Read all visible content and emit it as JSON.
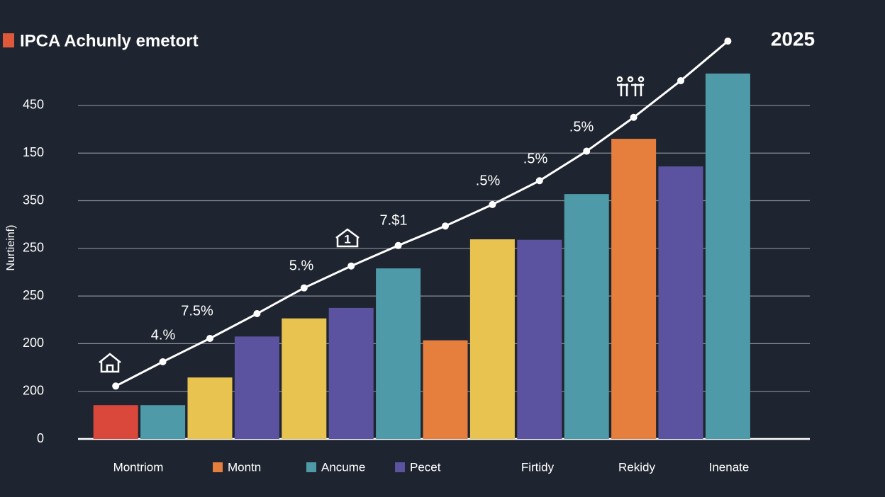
{
  "chart_data": {
    "type": "bar",
    "title": "IPCA Achunly emetort",
    "title_color": "#e0583a",
    "year_label": "2025",
    "ylabel": "Nurtieinf)",
    "categories": [
      null,
      null,
      null,
      null,
      null,
      null,
      null,
      null,
      null,
      null,
      null,
      null,
      null,
      null
    ],
    "values": [
      0.71,
      0.71,
      1.29,
      2.15,
      2.53,
      2.75,
      3.58,
      2.07,
      4.19,
      4.18,
      5.14,
      6.3,
      5.72,
      7.67
    ],
    "colors": [
      "#d9483b",
      "#4e9aa8",
      "#e8c350",
      "#5c53a0",
      "#e8c350",
      "#5c53a0",
      "#4e9aa8",
      "#e67e3e",
      "#e8c350",
      "#5c53a0",
      "#4e9aa8",
      "#e67e3e",
      "#5c53a0",
      "#4e9aa8"
    ],
    "line": {
      "color": "#ffffff",
      "values": [
        1.11,
        1.62,
        2.11,
        2.63,
        3.17,
        3.63,
        4.06,
        4.47,
        4.92,
        5.42,
        6.04,
        6.75,
        7.52,
        8.35
      ]
    },
    "ylim": [
      0,
      8.5
    ],
    "yticks": [
      {
        "value": 0,
        "label": "0"
      },
      {
        "value": 1,
        "label": "200"
      },
      {
        "value": 2,
        "label": "200"
      },
      {
        "value": 3,
        "label": "250"
      },
      {
        "value": 4,
        "label": "250"
      },
      {
        "value": 5,
        "label": "350"
      },
      {
        "value": 6,
        "label": "150"
      },
      {
        "value": 7,
        "label": "450"
      }
    ],
    "grid": true,
    "annotations": [
      "4.%",
      "7.5%",
      "5.%",
      "1",
      "7.$1",
      ".5%",
      ".5%",
      ".5%"
    ],
    "legend": [
      {
        "name": "Montriom"
      },
      {
        "name": "Montn",
        "color": "#e67e3e"
      },
      {
        "name": "Ancume",
        "color": "#4e9aa8"
      },
      {
        "name": "Pecet",
        "color": "#5c53a0"
      },
      {
        "name": "Firtidy"
      },
      {
        "name": "Rekidy"
      },
      {
        "name": "Inenate"
      }
    ]
  }
}
